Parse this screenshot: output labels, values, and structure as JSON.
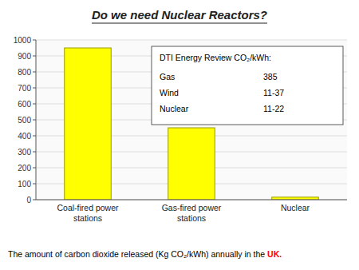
{
  "chart_data": {
    "type": "bar",
    "title": "Do we need Nuclear Reactors?",
    "categories": [
      "Coal-fired power\nstations",
      "Gas-fired power\nstations",
      "Nuclear"
    ],
    "values": [
      950,
      450,
      16
    ],
    "color": "#FFFF00",
    "ylim": [
      0,
      1000
    ],
    "yticks": [
      0,
      100,
      200,
      300,
      400,
      500,
      600,
      700,
      800,
      900,
      1000
    ],
    "grid": true,
    "annotation": {
      "title": "DTI Energy Review CO₂/kWh:",
      "rows": [
        [
          "Gas",
          "385"
        ],
        [
          "Wind",
          "11-37"
        ],
        [
          "Nuclear",
          "11-22"
        ]
      ]
    },
    "caption": [
      {
        "text": "The amount of carbon dioxide released (Kg CO₂/kWh) annually in the "
      },
      {
        "text": "UK.",
        "color": "#FF0000"
      }
    ]
  }
}
